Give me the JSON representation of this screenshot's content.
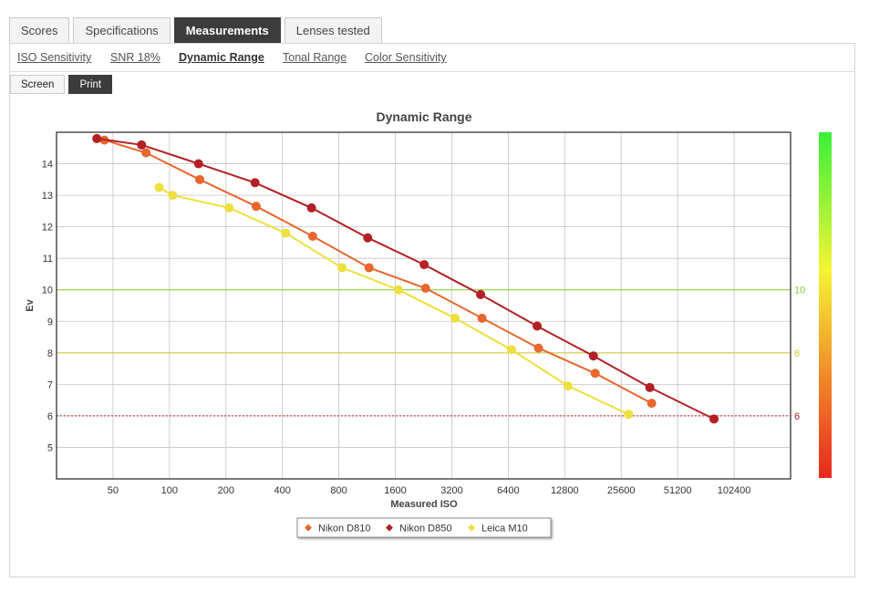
{
  "tabs": [
    "Scores",
    "Specifications",
    "Measurements",
    "Lenses tested"
  ],
  "active_tab": 2,
  "subtabs": [
    "ISO Sensitivity",
    "SNR 18%",
    "Dynamic Range",
    "Tonal Range",
    "Color Sensitivity"
  ],
  "active_subtab": 2,
  "modes": [
    "Screen",
    "Print"
  ],
  "active_mode": 1,
  "chart_data": {
    "type": "line",
    "title": "Dynamic Range",
    "xlabel": "Measured ISO",
    "ylabel": "Ev",
    "x_scale": "log2",
    "x_ticks": [
      50,
      100,
      200,
      400,
      800,
      1600,
      3200,
      6400,
      12800,
      25600,
      51200,
      102400
    ],
    "xlim": [
      25,
      204800
    ],
    "ylim": [
      4,
      15
    ],
    "y_ticks": [
      5,
      6,
      7,
      8,
      9,
      10,
      11,
      12,
      13,
      14
    ],
    "grid": true,
    "legend_position": "bottom",
    "reference_lines": [
      {
        "value": 10,
        "label": "10",
        "color": "#7ecf3a",
        "style": "solid"
      },
      {
        "value": 8,
        "label": "8",
        "color": "#d4c832",
        "style": "solid"
      },
      {
        "value": 6,
        "label": "6",
        "color": "#b22222",
        "style": "dotted"
      }
    ],
    "color_scale": [
      "#39f03a",
      "#f5f532",
      "#f07a28",
      "#e8281e"
    ],
    "series": [
      {
        "name": "Nikon D810",
        "color": "#e8672e",
        "x": [
          45,
          75,
          145,
          290,
          580,
          1160,
          2320,
          4640,
          9280,
          18600,
          37200
        ],
        "y": [
          14.75,
          14.35,
          13.5,
          12.65,
          11.7,
          10.7,
          10.05,
          9.1,
          8.15,
          7.35,
          6.4
        ]
      },
      {
        "name": "Nikon D850",
        "color": "#b32026",
        "x": [
          41,
          71,
          143,
          286,
          572,
          1140,
          2280,
          4560,
          9120,
          18200,
          36400,
          80000
        ],
        "y": [
          14.8,
          14.6,
          14.0,
          13.4,
          12.6,
          11.65,
          10.8,
          9.85,
          8.85,
          7.9,
          6.9,
          5.9
        ]
      },
      {
        "name": "Leica M10",
        "color": "#ede040",
        "x": [
          88,
          104,
          208,
          416,
          832,
          1664,
          3328,
          6656,
          13312,
          28000
        ],
        "y": [
          13.25,
          13.0,
          12.6,
          11.8,
          10.7,
          10.0,
          9.1,
          8.1,
          6.95,
          6.05
        ]
      }
    ]
  }
}
